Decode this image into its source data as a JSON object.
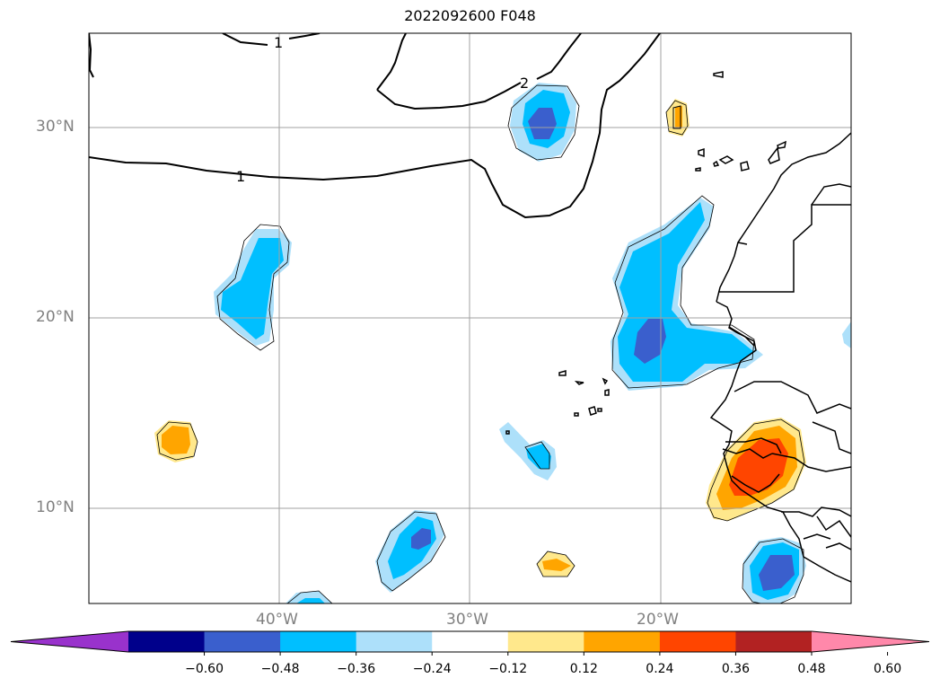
{
  "title": "2022092600 F048",
  "lat_labels": [
    "30°N",
    "20°N",
    "10°N"
  ],
  "lon_labels": [
    "40°W",
    "30°W",
    "20°W"
  ],
  "contour_labels": [
    "1",
    "2",
    "1"
  ],
  "colorbar": {
    "ticks": [
      "−0.60",
      "−0.48",
      "−0.36",
      "−0.24",
      "−0.12",
      "0.12",
      "0.24",
      "0.36",
      "0.48",
      "0.60"
    ],
    "colors": [
      "#9932CC",
      "#00008B",
      "#3A5FCD",
      "#00BFFF",
      "#ADE0FA",
      "#FFFFFF",
      "#FFE88C",
      "#FFA500",
      "#FF4500",
      "#B22222",
      "#FF88AA"
    ]
  },
  "chart_data": {
    "type": "heatmap",
    "title": "2022092600 F048",
    "x_range": [
      "50°W",
      "10°W"
    ],
    "y_range": [
      "5°N",
      "35°N"
    ],
    "x_ticks": [
      "40°W",
      "30°W",
      "20°W"
    ],
    "y_ticks": [
      "30°N",
      "20°N",
      "10°N"
    ],
    "colorbar_levels": [
      -0.6,
      -0.48,
      -0.36,
      -0.24,
      -0.12,
      0.12,
      0.24,
      0.36,
      0.48,
      0.6
    ],
    "contour_levels": [
      1,
      2,
      1
    ],
    "grid": true
  }
}
